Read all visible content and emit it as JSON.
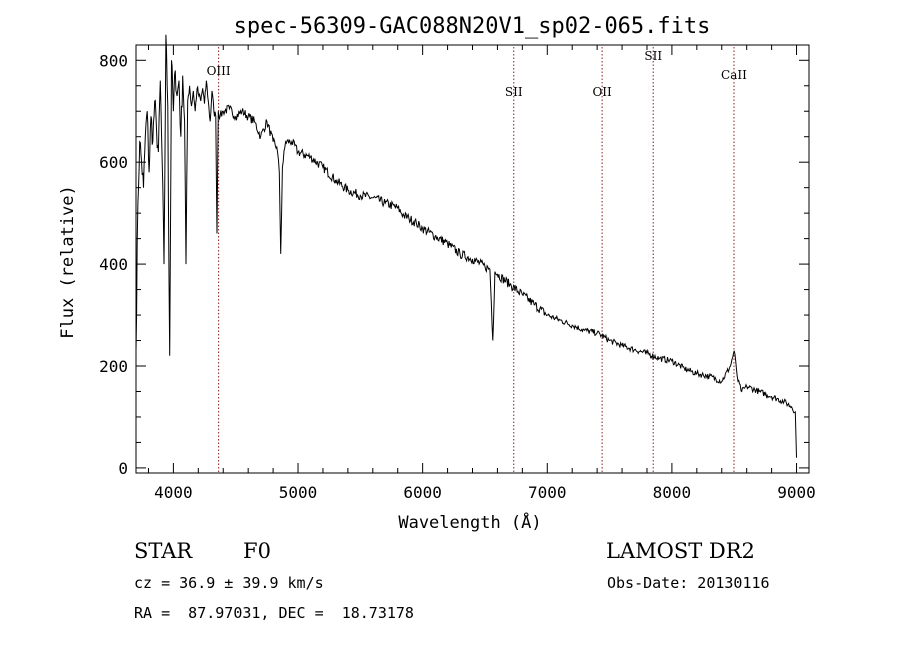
{
  "chart_data": {
    "type": "line",
    "title": "spec-56309-GAC088N20V1_sp02-065.fits",
    "xlabel": "Wavelength (Å)",
    "ylabel": "Flux (relative)",
    "xlim": [
      3700,
      9100
    ],
    "ylim": [
      -10,
      830
    ],
    "xticks": [
      4000,
      5000,
      6000,
      7000,
      8000,
      9000
    ],
    "yticks": [
      0,
      200,
      400,
      600,
      800
    ],
    "grid": false,
    "series": [
      {
        "x": [
          3700,
          3715,
          3730,
          3745,
          3760,
          3775,
          3790,
          3805,
          3820,
          3835,
          3850,
          3865,
          3880,
          3895,
          3910,
          3925,
          3940,
          3955,
          3970,
          3985,
          4000,
          4015,
          4030,
          4045,
          4060,
          4075,
          4090,
          4101,
          4115,
          4130,
          4145,
          4160,
          4175,
          4190,
          4205,
          4220,
          4235,
          4250,
          4265,
          4280,
          4295,
          4310,
          4325,
          4340,
          4350,
          4360,
          4375,
          4400,
          4450,
          4500,
          4550,
          4600,
          4650,
          4700,
          4750,
          4800,
          4830,
          4850,
          4861,
          4875,
          4900,
          4950,
          5000,
          5100,
          5200,
          5300,
          5400,
          5500,
          5600,
          5700,
          5800,
          5850,
          5890,
          5950,
          6000,
          6100,
          6200,
          6300,
          6400,
          6500,
          6540,
          6563,
          6580,
          6600,
          6700,
          6800,
          6900,
          7000,
          7100,
          7200,
          7300,
          7400,
          7500,
          7600,
          7700,
          7800,
          7900,
          8000,
          8100,
          8200,
          8300,
          8400,
          8470,
          8500,
          8530,
          8560,
          8600,
          8700,
          8800,
          8900,
          8960,
          8990,
          9000
        ],
        "y": [
          230,
          520,
          640,
          600,
          550,
          650,
          700,
          580,
          690,
          640,
          720,
          660,
          620,
          760,
          600,
          400,
          850,
          710,
          220,
          800,
          700,
          780,
          730,
          760,
          650,
          770,
          680,
          400,
          720,
          750,
          710,
          740,
          700,
          745,
          730,
          720,
          745,
          715,
          760,
          720,
          680,
          740,
          700,
          690,
          460,
          700,
          690,
          700,
          705,
          690,
          700,
          690,
          680,
          650,
          680,
          640,
          630,
          580,
          420,
          590,
          640,
          640,
          620,
          610,
          590,
          565,
          545,
          535,
          530,
          520,
          510,
          495,
          490,
          480,
          470,
          455,
          440,
          420,
          410,
          395,
          390,
          250,
          385,
          380,
          360,
          340,
          320,
          300,
          290,
          280,
          270,
          265,
          250,
          240,
          232,
          225,
          215,
          210,
          195,
          185,
          180,
          170,
          200,
          230,
          170,
          150,
          160,
          150,
          140,
          130,
          120,
          110,
          20
        ]
      }
    ],
    "lines": [
      {
        "label": "OIII",
        "x": 4363
      },
      {
        "label": "SII",
        "x": 6731
      },
      {
        "label": "OII",
        "x": 7440
      },
      {
        "label": "SII",
        "x": 7850
      },
      {
        "label": "CaII",
        "x": 8498
      }
    ]
  },
  "info": {
    "star_class": "STAR",
    "subclass": "F0",
    "survey": "LAMOST DR2",
    "cz": "cz = 36.9 ± 39.9 km/s",
    "obs_date": "Obs-Date: 20130116",
    "coords": "RA =  87.97031, DEC =  18.73178"
  }
}
